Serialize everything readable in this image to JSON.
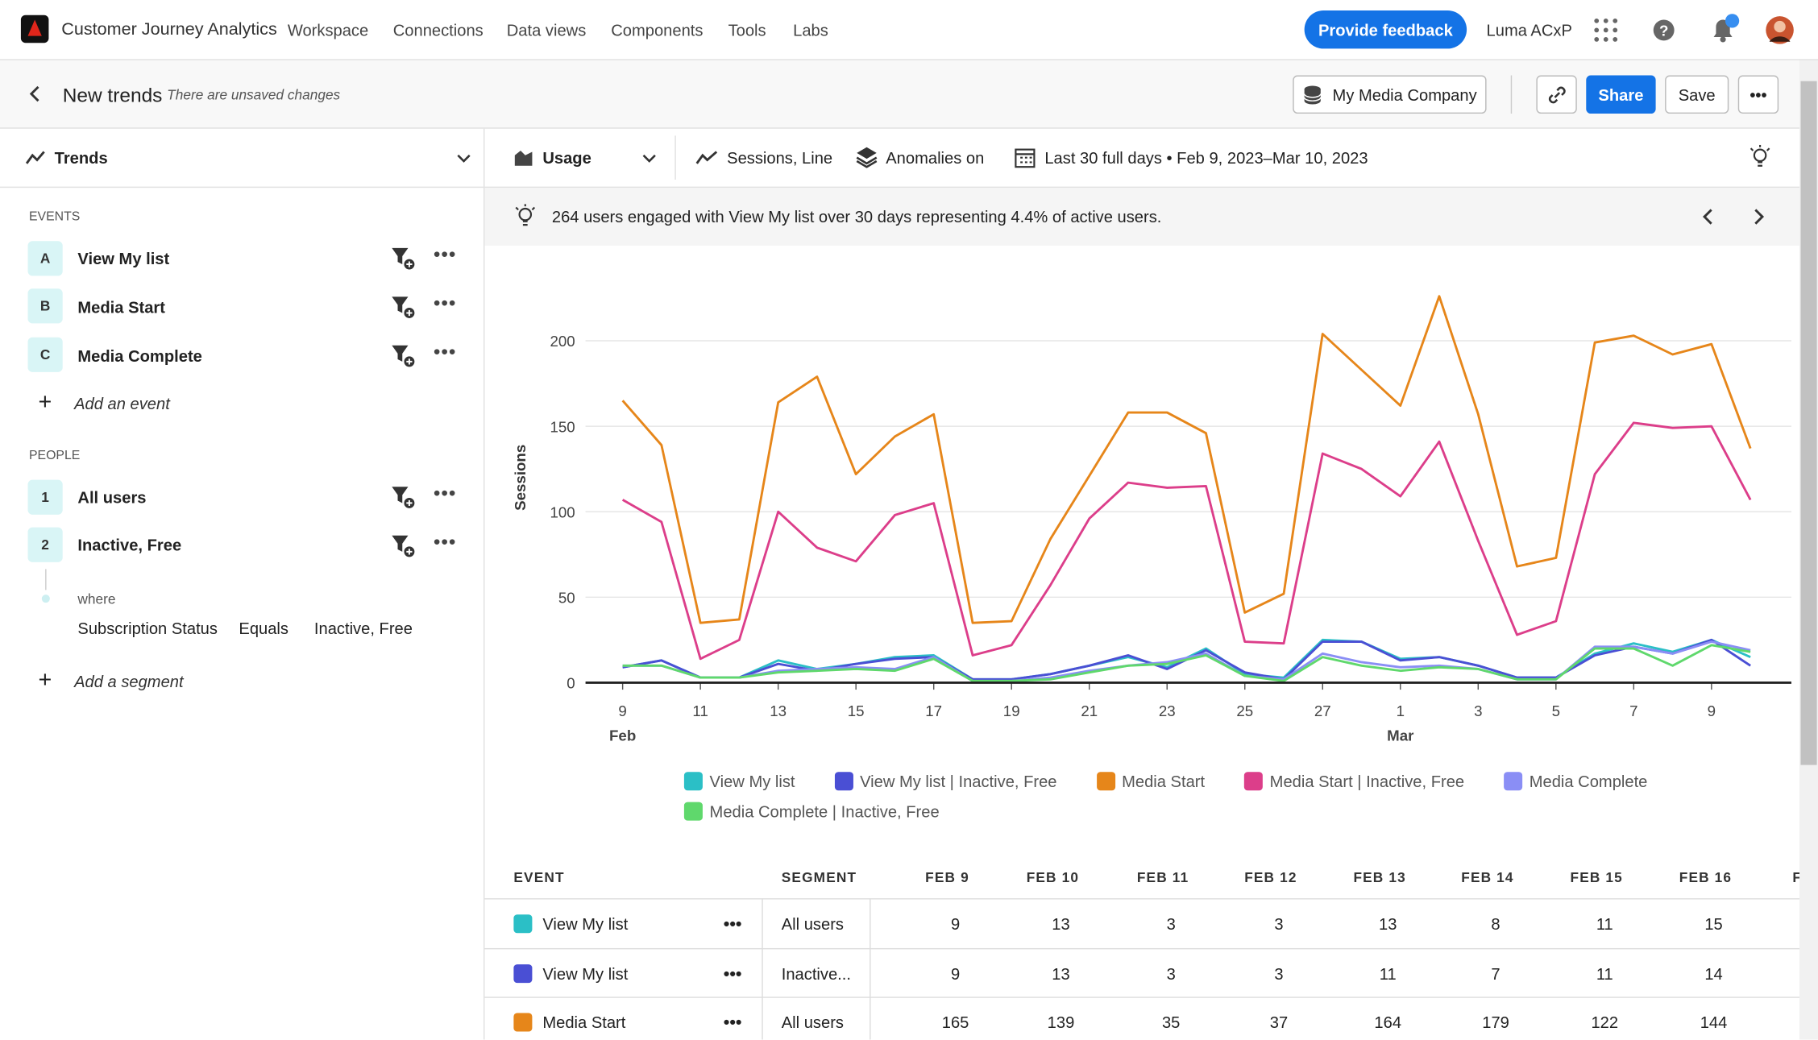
{
  "app": {
    "title": "Customer Journey Analytics",
    "nav": [
      "Workspace",
      "Connections",
      "Data views",
      "Components",
      "Tools",
      "Labs"
    ],
    "feedback": "Provide feedback",
    "org": "Luma ACxP"
  },
  "project": {
    "title": "New trends",
    "status": "There are unsaved changes",
    "company": "My Media Company",
    "share": "Share",
    "save": "Save"
  },
  "panel": {
    "title": "Trends",
    "events_heading": "EVENTS",
    "events": [
      {
        "key": "A",
        "label": "View My list"
      },
      {
        "key": "B",
        "label": "Media Start"
      },
      {
        "key": "C",
        "label": "Media Complete"
      }
    ],
    "add_event": "Add an event",
    "people_heading": "PEOPLE",
    "people": [
      {
        "key": "1",
        "label": "All users"
      },
      {
        "key": "2",
        "label": "Inactive, Free"
      }
    ],
    "where": "where",
    "condition": [
      "Subscription Status",
      "Equals",
      "Inactive, Free"
    ],
    "add_segment": "Add a segment"
  },
  "toolbar": {
    "view": "Usage",
    "viz": "Sessions, Line",
    "anomalies": "Anomalies on",
    "range": "Last 30 full days • Feb 9, 2023–Mar 10, 2023"
  },
  "insight": "264 users engaged with View My list over 30 days representing 4.4% of active users.",
  "chart_data": {
    "type": "line",
    "y_label": "Sessions",
    "categories": [
      "9",
      null,
      "11",
      null,
      "13",
      null,
      "15",
      null,
      "17",
      null,
      "19",
      null,
      "21",
      null,
      "23",
      null,
      "25",
      null,
      "27",
      null,
      "1",
      null,
      "3",
      null,
      "5",
      null,
      "7",
      null,
      "9",
      null
    ],
    "month_categories": [
      "Feb",
      null,
      null,
      null,
      null,
      null,
      null,
      null,
      null,
      null,
      null,
      null,
      null,
      null,
      null,
      null,
      null,
      null,
      null,
      null,
      "Mar",
      null,
      null,
      null,
      null,
      null,
      null,
      null,
      null,
      null
    ],
    "ylim": [
      0,
      250
    ],
    "yticks": [
      0,
      50,
      100,
      150,
      200
    ],
    "grid": true,
    "series": [
      {
        "name": "View My list",
        "color": "#2bbfc6",
        "values": [
          9,
          13,
          3,
          3,
          13,
          8,
          11,
          15,
          16,
          2,
          2,
          5,
          10,
          15,
          9,
          20,
          5,
          3,
          25,
          24,
          14,
          15,
          10,
          3,
          3,
          17,
          23,
          18,
          25,
          15
        ]
      },
      {
        "name": "View My list | Inactive, Free",
        "color": "#4a4fd4",
        "values": [
          9,
          13,
          3,
          3,
          11,
          7,
          11,
          14,
          15,
          2,
          2,
          5,
          10,
          16,
          8,
          19,
          6,
          2,
          24,
          24,
          13,
          15,
          10,
          3,
          3,
          16,
          21,
          17,
          25,
          10
        ]
      },
      {
        "name": "Media Start",
        "color": "#e6861a",
        "values": [
          165,
          139,
          35,
          37,
          164,
          179,
          122,
          144,
          157,
          35,
          36,
          84,
          121,
          158,
          158,
          146,
          41,
          52,
          204,
          183,
          162,
          226,
          157,
          68,
          73,
          199,
          203,
          192,
          198,
          137
        ]
      },
      {
        "name": "Media Start | Inactive, Free",
        "color": "#dc3e8a",
        "values": [
          107,
          94,
          14,
          25,
          100,
          79,
          71,
          98,
          105,
          16,
          22,
          57,
          96,
          117,
          114,
          115,
          24,
          23,
          134,
          125,
          109,
          141,
          83,
          28,
          36,
          122,
          152,
          149,
          150,
          107
        ]
      },
      {
        "name": "Media Complete",
        "color": "#8a8ef5",
        "values": [
          10,
          10,
          3,
          3,
          7,
          8,
          9,
          8,
          15,
          1,
          1,
          3,
          7,
          10,
          12,
          17,
          4,
          2,
          17,
          12,
          9,
          10,
          8,
          2,
          2,
          21,
          21,
          17,
          24,
          19
        ]
      },
      {
        "name": "Media Complete | Inactive, Free",
        "color": "#5fd86c",
        "values": [
          10,
          10,
          3,
          3,
          6,
          7,
          8,
          7,
          14,
          1,
          1,
          2,
          6,
          10,
          11,
          16,
          4,
          1,
          15,
          10,
          7,
          9,
          8,
          2,
          2,
          20,
          20,
          10,
          22,
          18
        ]
      }
    ]
  },
  "table": {
    "headers": [
      "EVENT",
      "SEGMENT",
      "FEB 9",
      "FEB 10",
      "FEB 11",
      "FEB 12",
      "FEB 13",
      "FEB 14",
      "FEB 15",
      "FEB 16",
      "F"
    ],
    "rows": [
      {
        "color": "#2bbfc6",
        "cells": [
          "View My list",
          "All users",
          "9",
          "13",
          "3",
          "3",
          "13",
          "8",
          "11",
          "15"
        ]
      },
      {
        "color": "#4a4fd4",
        "cells": [
          "View My list",
          "Inactive...",
          "9",
          "13",
          "3",
          "3",
          "11",
          "7",
          "11",
          "14"
        ]
      },
      {
        "color": "#e6861a",
        "cells": [
          "Media Start",
          "All users",
          "165",
          "139",
          "35",
          "37",
          "164",
          "179",
          "122",
          "144"
        ]
      }
    ]
  }
}
